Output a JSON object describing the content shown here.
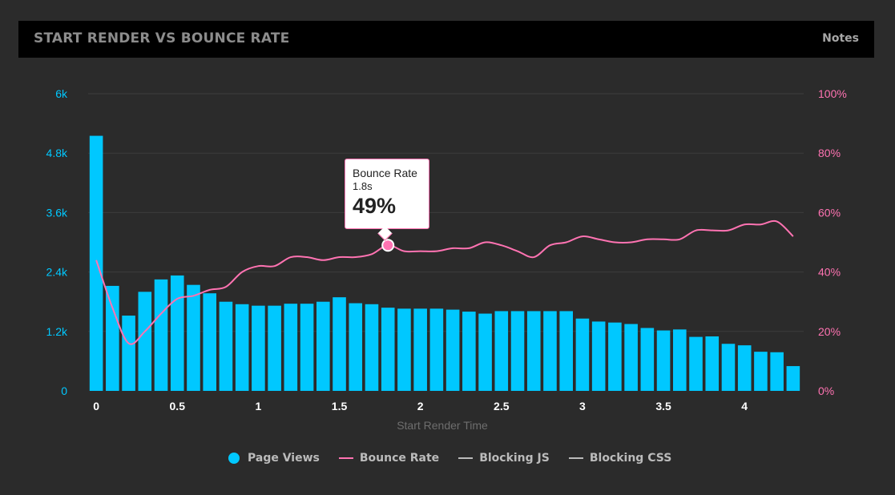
{
  "header": {
    "title": "START RENDER VS BOUNCE RATE",
    "notes_label": "Notes"
  },
  "tooltip": {
    "label": "Bounce Rate",
    "time": "1.8s",
    "value": "49%"
  },
  "legend": [
    {
      "label": "Page Views",
      "color": "#00c8ff",
      "shape": "dot"
    },
    {
      "label": "Bounce Rate",
      "color": "#ff73b2",
      "shape": "line"
    },
    {
      "label": "Blocking JS",
      "color": "#bbbbbb",
      "shape": "line"
    },
    {
      "label": "Blocking CSS",
      "color": "#bbbbbb",
      "shape": "line"
    }
  ],
  "chart_data": {
    "type": "bar+line",
    "title": "START RENDER VS BOUNCE RATE",
    "xlabel": "Start Render Time",
    "x_ticks": [
      0,
      0.5,
      1,
      1.5,
      2,
      2.5,
      3,
      3.5,
      4
    ],
    "x_tick_labels": [
      "0",
      "0.5",
      "1",
      "1.5",
      "2",
      "2.5",
      "3",
      "3.5",
      "4"
    ],
    "xlim": [
      -0.05,
      4.35
    ],
    "y_left": {
      "label": "Page Views",
      "ylim": [
        0,
        6000
      ],
      "ticks": [
        0,
        1200,
        2400,
        3600,
        4800,
        6000
      ],
      "tick_labels": [
        "0",
        "1.2k",
        "2.4k",
        "3.6k",
        "4.8k",
        "6k"
      ],
      "color": "#00c8ff"
    },
    "y_right": {
      "label": "Bounce Rate",
      "ylim": [
        0,
        100
      ],
      "ticks": [
        0,
        20,
        40,
        60,
        80,
        100
      ],
      "tick_labels": [
        "0%",
        "20%",
        "40%",
        "60%",
        "80%",
        "100%"
      ],
      "color": "#ff73b2"
    },
    "x": [
      0,
      0.1,
      0.2,
      0.3,
      0.4,
      0.5,
      0.6,
      0.7,
      0.8,
      0.9,
      1.0,
      1.1,
      1.2,
      1.3,
      1.4,
      1.5,
      1.6,
      1.7,
      1.8,
      1.9,
      2.0,
      2.1,
      2.2,
      2.3,
      2.4,
      2.5,
      2.6,
      2.7,
      2.8,
      2.9,
      3.0,
      3.1,
      3.2,
      3.3,
      3.4,
      3.5,
      3.6,
      3.7,
      3.8,
      3.9,
      4.0,
      4.1,
      4.2,
      4.3
    ],
    "series": [
      {
        "name": "Page Views",
        "type": "bar",
        "axis": "left",
        "color": "#00c8ff",
        "values": [
          5150,
          2120,
          1520,
          2000,
          2250,
          2330,
          2140,
          1970,
          1800,
          1750,
          1720,
          1720,
          1760,
          1760,
          1800,
          1890,
          1770,
          1750,
          1680,
          1660,
          1660,
          1660,
          1640,
          1600,
          1560,
          1610,
          1610,
          1610,
          1610,
          1610,
          1460,
          1400,
          1380,
          1350,
          1270,
          1220,
          1240,
          1090,
          1100,
          950,
          920,
          790,
          780,
          500
        ]
      },
      {
        "name": "Bounce Rate",
        "type": "line",
        "axis": "right",
        "color": "#ff73b2",
        "values": [
          44,
          28,
          16,
          20,
          26,
          31,
          32,
          34,
          35,
          40,
          42,
          42,
          45,
          45,
          44,
          45,
          45,
          46,
          49,
          47,
          47,
          47,
          48,
          48,
          50,
          49,
          47,
          45,
          49,
          50,
          52,
          51,
          50,
          50,
          51,
          51,
          51,
          54,
          54,
          54,
          56,
          56,
          57,
          52
        ],
        "highlight": {
          "x": 1.8,
          "value": 49
        }
      }
    ]
  }
}
